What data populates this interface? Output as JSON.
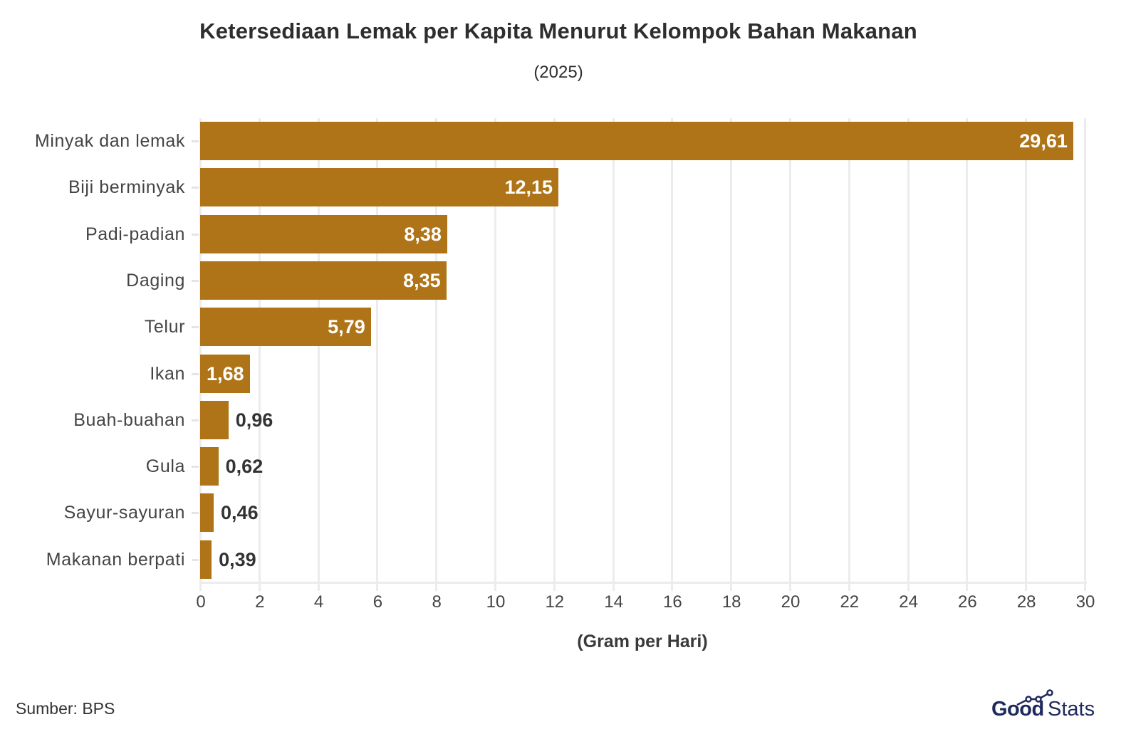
{
  "header": {
    "title": "Ketersediaan Lemak per Kapita Menurut Kelompok Bahan Makanan",
    "subtitle": "(2025)"
  },
  "chart_data": {
    "type": "bar",
    "orientation": "horizontal",
    "title": "Ketersediaan Lemak per Kapita Menurut Kelompok Bahan Makanan",
    "subtitle": "(2025)",
    "categories": [
      "Minyak dan lemak",
      "Biji berminyak",
      "Padi-padian",
      "Daging",
      "Telur",
      "Ikan",
      "Buah-buahan",
      "Gula",
      "Sayur-sayuran",
      "Makanan berpati"
    ],
    "values": [
      29.61,
      12.15,
      8.38,
      8.35,
      5.79,
      1.68,
      0.96,
      0.62,
      0.46,
      0.39
    ],
    "value_labels": [
      "29,61",
      "12,15",
      "8,38",
      "8,35",
      "5,79",
      "1,68",
      "0,96",
      "0,62",
      "0,46",
      "0,39"
    ],
    "xlabel": "(Gram per Hari)",
    "ylabel": "",
    "xlim": [
      0,
      30
    ],
    "xticks": [
      "0",
      "2",
      "4",
      "6",
      "8",
      "10",
      "12",
      "14",
      "16",
      "18",
      "20",
      "22",
      "24",
      "26",
      "28",
      "30"
    ],
    "grid": true,
    "legend": null,
    "bar_color": "#AF7418"
  },
  "footer": {
    "source": "Sumber: BPS",
    "logo_good": "Good",
    "logo_stats": "Stats",
    "logo_color": "#1f2a5c"
  }
}
